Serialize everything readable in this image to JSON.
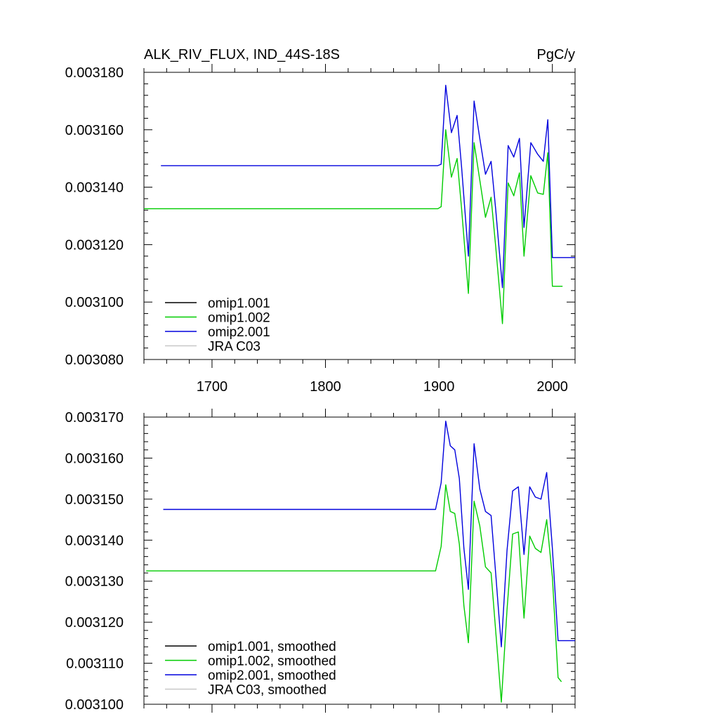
{
  "header": {
    "title": "ALK_RIV_FLUX, IND_44S-18S",
    "units": "PgC/y"
  },
  "chart_data": [
    {
      "type": "line",
      "title": "ALK_RIV_FLUX, IND_44S-18S",
      "xlabel": "",
      "ylabel": "",
      "xlim": [
        1640,
        2020
      ],
      "ylim": [
        0.00308,
        0.00318
      ],
      "x_ticks": [
        1700,
        1800,
        1900,
        2000
      ],
      "x_tick_labels": [
        "1700",
        "1800",
        "1900",
        "2000"
      ],
      "y_ticks": [
        0.00308,
        0.0031,
        0.00312,
        0.00314,
        0.00316,
        0.00318
      ],
      "y_tick_labels": [
        "0.003080",
        "0.003100",
        "0.003120",
        "0.003140",
        "0.003160",
        "0.003180"
      ],
      "grid": false,
      "legend_position": "bottom-left",
      "legend": [
        "omip1.001",
        "omip1.002",
        "omip2.001",
        "JRA C03"
      ],
      "series": [
        {
          "name": "omip1.001",
          "color": "#000000",
          "x": [],
          "y": []
        },
        {
          "name": "omip1.002",
          "color": "#00cc00",
          "x": [
            1640,
            1899,
            1902,
            1906,
            1911,
            1916,
            1920,
            1926,
            1931,
            1936,
            1941,
            1946,
            1950,
            1956,
            1961,
            1966,
            1971,
            1975,
            1981,
            1987,
            1992,
            1996,
            2000,
            2009
          ],
          "y": [
            0.0031325,
            0.0031325,
            0.0031332,
            0.00316,
            0.0031435,
            0.00315,
            0.0031325,
            0.003103,
            0.0031555,
            0.0031425,
            0.0031295,
            0.0031365,
            0.0031195,
            0.0030925,
            0.0031415,
            0.003137,
            0.003145,
            0.003116,
            0.003144,
            0.003138,
            0.0031375,
            0.003152,
            0.0031055,
            0.0031055
          ]
        },
        {
          "name": "omip2.001",
          "color": "#0000dd",
          "x": [
            1655,
            1899,
            1902,
            1906,
            1911,
            1916,
            1920,
            1926,
            1931,
            1936,
            1941,
            1946,
            1950,
            1956,
            1961,
            1966,
            1971,
            1975,
            1981,
            1987,
            1992,
            1996,
            2000,
            2020
          ],
          "y": [
            0.0031475,
            0.0031475,
            0.003148,
            0.0031755,
            0.003159,
            0.003165,
            0.003147,
            0.003116,
            0.00317,
            0.003157,
            0.0031445,
            0.003149,
            0.0031325,
            0.003105,
            0.0031545,
            0.0031505,
            0.003157,
            0.003126,
            0.0031555,
            0.0031515,
            0.003149,
            0.0031635,
            0.0031155,
            0.0031155
          ]
        },
        {
          "name": "JRA C03",
          "color": "#c8c8c8",
          "x": [],
          "y": []
        }
      ]
    },
    {
      "type": "line",
      "title": "",
      "xlabel": "",
      "ylabel": "",
      "xlim": [
        1640,
        2020
      ],
      "ylim": [
        0.0031,
        0.00317
      ],
      "x_ticks": [
        1700,
        1800,
        1900,
        2000
      ],
      "x_tick_labels": [],
      "y_ticks": [
        0.0031,
        0.00311,
        0.00312,
        0.00313,
        0.00314,
        0.00315,
        0.00316,
        0.00317
      ],
      "y_tick_labels": [
        "0.003100",
        "0.003110",
        "0.003120",
        "0.003130",
        "0.003140",
        "0.003150",
        "0.003160",
        "0.003170"
      ],
      "grid": false,
      "legend_position": "bottom-left",
      "legend": [
        "omip1.001, smoothed",
        "omip1.002, smoothed",
        "omip2.001, smoothed",
        "JRA C03, smoothed"
      ],
      "series": [
        {
          "name": "omip1.001, smoothed",
          "color": "#000000",
          "x": [],
          "y": []
        },
        {
          "name": "omip1.002, smoothed",
          "color": "#00cc00",
          "x": [
            1642,
            1897,
            1902,
            1906,
            1910,
            1914,
            1918,
            1922,
            1926,
            1931,
            1936,
            1941,
            1946,
            1950,
            1955,
            1960,
            1965,
            1970,
            1975,
            1980,
            1985,
            1990,
            1995,
            2000,
            2005,
            2008
          ],
          "y": [
            0.0031325,
            0.0031325,
            0.0031385,
            0.0031535,
            0.003147,
            0.0031465,
            0.003139,
            0.003124,
            0.003115,
            0.0031495,
            0.0031435,
            0.0031335,
            0.003132,
            0.003118,
            0.0031005,
            0.003123,
            0.0031415,
            0.003142,
            0.003121,
            0.003141,
            0.003138,
            0.003137,
            0.003145,
            0.003131,
            0.0031065,
            0.0031055
          ]
        },
        {
          "name": "omip2.001, smoothed",
          "color": "#0000dd",
          "x": [
            1657,
            1897,
            1902,
            1906,
            1910,
            1914,
            1918,
            1922,
            1926,
            1931,
            1936,
            1941,
            1946,
            1950,
            1955,
            1960,
            1965,
            1970,
            1975,
            1980,
            1985,
            1990,
            1995,
            2000,
            2005,
            2020
          ],
          "y": [
            0.0031475,
            0.0031475,
            0.003154,
            0.003169,
            0.003163,
            0.003162,
            0.003155,
            0.003138,
            0.003128,
            0.0031635,
            0.0031525,
            0.003147,
            0.003146,
            0.003132,
            0.003114,
            0.0031375,
            0.003152,
            0.003153,
            0.0031365,
            0.003153,
            0.0031505,
            0.00315,
            0.0031565,
            0.003138,
            0.0031155,
            0.0031155
          ]
        },
        {
          "name": "JRA C03, smoothed",
          "color": "#c8c8c8",
          "x": [],
          "y": []
        }
      ]
    }
  ]
}
